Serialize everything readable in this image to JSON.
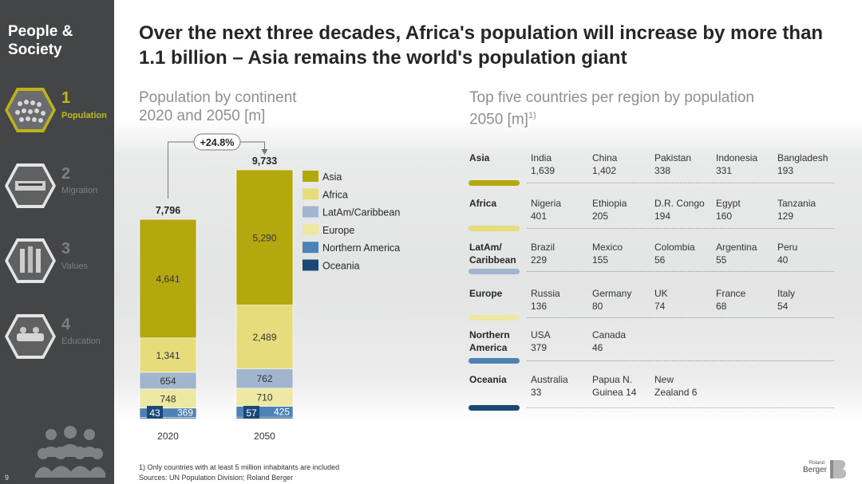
{
  "sidebar": {
    "section_title": "People & Society",
    "page_number": "9",
    "nav": [
      {
        "num": "1",
        "label": "Population",
        "active": true
      },
      {
        "num": "2",
        "label": "Migration",
        "active": false
      },
      {
        "num": "3",
        "label": "Values",
        "active": false
      },
      {
        "num": "4",
        "label": "Education",
        "active": false
      }
    ]
  },
  "title": "Over the next three decades, Africa's population will increase by more than 1.1 billion – Asia remains the world's population giant",
  "left_subtitle": {
    "line1": "Population by continent",
    "line2": "2020 and 2050 [m]"
  },
  "right_subtitle": {
    "line1": "Top five countries per region by population",
    "line2": "2050 [m]",
    "footnote_mark": "1)"
  },
  "chart_data": {
    "type": "bar",
    "stacked": true,
    "categories": [
      "2020",
      "2050"
    ],
    "totals": [
      "7,796",
      "9,733"
    ],
    "growth_label": "+24.8%",
    "series": [
      {
        "name": "Oceania",
        "values": [
          43,
          57
        ],
        "labels": [
          "43",
          "57"
        ],
        "color": "#1b4877"
      },
      {
        "name": "Northern America",
        "values": [
          369,
          425
        ],
        "labels": [
          "369",
          "425"
        ],
        "color": "#4f82b4"
      },
      {
        "name": "Europe",
        "values": [
          748,
          710
        ],
        "labels": [
          "748",
          "710"
        ],
        "color": "#ede9a4"
      },
      {
        "name": "LatAm/Caribbean",
        "values": [
          654,
          762
        ],
        "labels": [
          "654",
          "762"
        ],
        "color": "#a2b5ce"
      },
      {
        "name": "Africa",
        "values": [
          1341,
          2489
        ],
        "labels": [
          "1,341",
          "2,489"
        ],
        "color": "#e6dc7c"
      },
      {
        "name": "Asia",
        "values": [
          4641,
          5290
        ],
        "labels": [
          "4,641",
          "5,290"
        ],
        "color": "#b3a90f"
      }
    ],
    "legend": [
      "Asia",
      "Africa",
      "LatAm/Caribbean",
      "Europe",
      "Northern America",
      "Oceania"
    ]
  },
  "regions": [
    {
      "name": "Asia",
      "color": "#b3a90f",
      "countries": [
        {
          "name": "India",
          "value": "1,639"
        },
        {
          "name": "China",
          "value": "1,402"
        },
        {
          "name": "Pakistan",
          "value": "338"
        },
        {
          "name": "Indonesia",
          "value": "331"
        },
        {
          "name": "Bangladesh",
          "value": "193"
        }
      ]
    },
    {
      "name": "Africa",
      "color": "#e6dc7c",
      "countries": [
        {
          "name": "Nigeria",
          "value": "401"
        },
        {
          "name": "Ethiopia",
          "value": "205"
        },
        {
          "name": "D.R. Congo",
          "value": "194"
        },
        {
          "name": "Egypt",
          "value": "160"
        },
        {
          "name": "Tanzania",
          "value": "129"
        }
      ]
    },
    {
      "name": "LatAm/ Caribbean",
      "color": "#a2b5ce",
      "countries": [
        {
          "name": "Brazil",
          "value": "229"
        },
        {
          "name": "Mexico",
          "value": "155"
        },
        {
          "name": "Colombia",
          "value": "56"
        },
        {
          "name": "Argentina",
          "value": "55"
        },
        {
          "name": "Peru",
          "value": "40"
        }
      ]
    },
    {
      "name": "Europe",
      "color": "#ede9a4",
      "countries": [
        {
          "name": "Russia",
          "value": "136"
        },
        {
          "name": "Germany",
          "value": "80"
        },
        {
          "name": "UK",
          "value": "74"
        },
        {
          "name": "France",
          "value": "68"
        },
        {
          "name": "Italy",
          "value": "54"
        }
      ]
    },
    {
      "name": "Northern America",
      "color": "#4f82b4",
      "countries": [
        {
          "name": "USA",
          "value": "379"
        },
        {
          "name": "Canada",
          "value": "46"
        }
      ]
    },
    {
      "name": "Oceania",
      "color": "#1b4877",
      "countries": [
        {
          "name": "Australia",
          "value": "33"
        },
        {
          "name": "Papua N.",
          "value": "Guinea 14"
        },
        {
          "name": "New",
          "value": "Zealand 6"
        }
      ]
    }
  ],
  "footnote": "1) Only countries with at least 5 million inhabitants are included",
  "sources": "Sources: UN Population Division; Roland Berger",
  "logo": {
    "small": "Roland",
    "big": "Berger"
  }
}
